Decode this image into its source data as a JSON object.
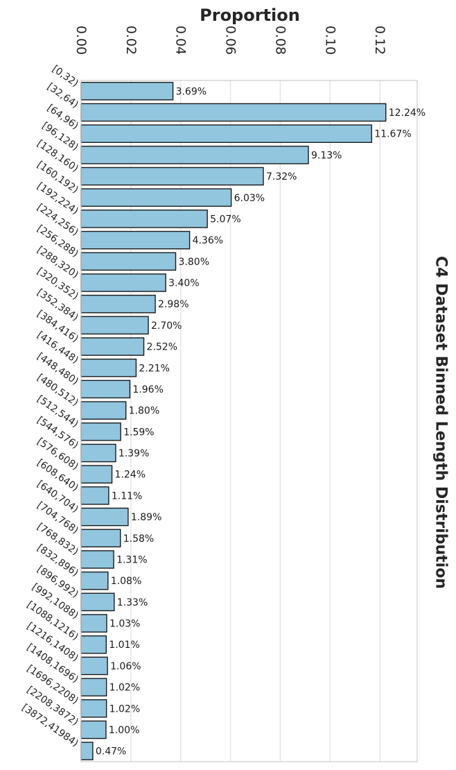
{
  "chart_data": {
    "type": "bar",
    "orientation": "horizontal",
    "title": "C4 Dataset Binned Length Distribution",
    "xlabel": "Proportion",
    "ylabel": "",
    "xlim": [
      0,
      0.135
    ],
    "xticks": [
      "0.00",
      "0.02",
      "0.04",
      "0.06",
      "0.08",
      "0.10",
      "0.12"
    ],
    "grid": true,
    "bar_color": "#92c5de",
    "edge_color": "#1a1a1a",
    "categories": [
      "[0,32)",
      "[32,64)",
      "[64,96)",
      "[96,128)",
      "[128,160)",
      "[160,192)",
      "[192,224)",
      "[224,256)",
      "[256,288)",
      "[288,320)",
      "[320,352)",
      "[352,384)",
      "[384,416)",
      "[416,448)",
      "[448,480)",
      "[480,512)",
      "[512,544)",
      "[544,576)",
      "[576,608)",
      "[608,640)",
      "[640,704)",
      "[704,768)",
      "[768,832)",
      "[832,896)",
      "[896,992)",
      "[992,1088)",
      "[1088,1216)",
      "[1216,1408)",
      "[1408,1696)",
      "[1696,2208)",
      "[2208,3872)",
      "[3872,41984)"
    ],
    "values": [
      0.0369,
      0.1224,
      0.1167,
      0.0913,
      0.0732,
      0.0603,
      0.0507,
      0.0436,
      0.038,
      0.034,
      0.0298,
      0.027,
      0.0252,
      0.0221,
      0.0196,
      0.018,
      0.0159,
      0.0139,
      0.0124,
      0.0111,
      0.0189,
      0.0158,
      0.0131,
      0.0108,
      0.0133,
      0.0103,
      0.0101,
      0.0106,
      0.0102,
      0.0102,
      0.01,
      0.0047
    ],
    "data_labels": [
      "3.69%",
      "12.24%",
      "11.67%",
      "9.13%",
      "7.32%",
      "6.03%",
      "5.07%",
      "4.36%",
      "3.80%",
      "3.40%",
      "2.98%",
      "2.70%",
      "2.52%",
      "2.21%",
      "1.96%",
      "1.80%",
      "1.59%",
      "1.39%",
      "1.24%",
      "1.11%",
      "1.89%",
      "1.58%",
      "1.31%",
      "1.08%",
      "1.33%",
      "1.03%",
      "1.01%",
      "1.06%",
      "1.02%",
      "1.02%",
      "1.00%",
      "0.47%"
    ]
  }
}
